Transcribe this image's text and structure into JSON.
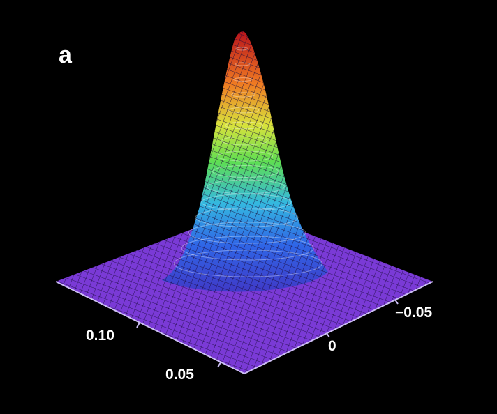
{
  "panel_label": "a",
  "chart_data": {
    "type": "surface",
    "title": "",
    "xlabel": "",
    "ylabel": "",
    "zlabel": "",
    "surface": "single gaussian peak on a flat base",
    "peak_center": [
      0.08,
      0.0
    ],
    "x_ticks": [
      {
        "value": 0.1,
        "label": "0.10"
      },
      {
        "value": 0.05,
        "label": "0.05"
      }
    ],
    "y_ticks": [
      {
        "value": 0,
        "label": "0"
      },
      {
        "value": -0.05,
        "label": "−0.05"
      }
    ],
    "grid": "wireframe mesh",
    "colormap": [
      "#7b2fd0",
      "#3a60e8",
      "#38c0e0",
      "#5fe050",
      "#f0e040",
      "#f07a20",
      "#c01818"
    ],
    "base_color": "#7a3ad6",
    "background": "#000000"
  }
}
